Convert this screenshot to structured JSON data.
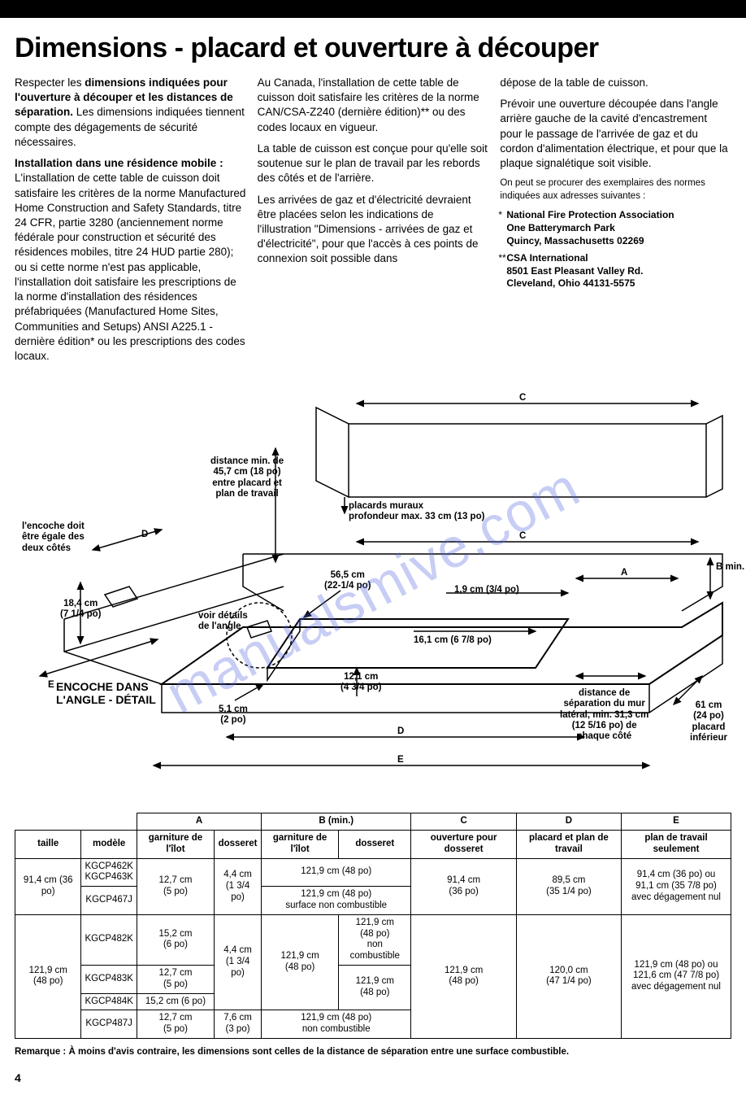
{
  "title": "Dimensions - placard et ouverture à découper",
  "watermark": "manualsmive.com",
  "col1": {
    "p1a": "Respecter les ",
    "p1b": "dimensions indiquées pour l'ouverture à découper et les distances de séparation.",
    "p1c": " Les dimensions indiquées tiennent compte des dégagements de sécurité nécessaires.",
    "p2a": "Installation dans une résidence mobile :",
    "p2b": " L'installation de cette table de cuisson doit satisfaire les critères de la norme Manufactured Home Construction and Safety Standards, titre 24 CFR, partie 3280 (anciennement norme fédérale pour construction et sécurité des résidences mobiles, titre 24 HUD partie 280); ou si cette norme n'est pas applicable, l'installation doit satisfaire les prescriptions de la norme d'installation des résidences préfabriquées (Manufactured Home Sites, Communities and Setups) ANSI A225.1 - dernière édition* ou les prescriptions des codes locaux."
  },
  "col2": {
    "p1": "Au Canada, l'installation de cette table de cuisson doit satisfaire les critères de la norme CAN/CSA-Z240 (dernière édition)** ou des codes locaux en vigueur.",
    "p2": "La table de cuisson est conçue pour qu'elle soit soutenue sur le plan de travail par les rebords des côtés et de l'arrière.",
    "p3": "Les arrivées de gaz et d'électricité devraient être placées selon les indications de l'illustration \"Dimensions - arrivées de gaz et d'électricité\", pour que l'accès à ces points de connexion soit possible dans"
  },
  "col3": {
    "p1": "dépose de la table de cuisson.",
    "p2": "Prévoir une ouverture découpée dans l'angle arrière gauche de la cavité d'encastrement pour le passage de l'arrivée de gaz et du cordon d'alimentation électrique, et pour que la plaque signalétique soit visible.",
    "note": "On peut se procurer des exemplaires des normes indiquées aux adresses suivantes :",
    "addr1": [
      "* ",
      "National Fire Protection Association",
      "One Batterymarch Park",
      "Quincy, Massachusetts 02269"
    ],
    "addr2": [
      "** ",
      "CSA International",
      "8501 East Pleasant Valley Rd.",
      "Cleveland, Ohio 44131-5575"
    ]
  },
  "diagram": {
    "encoche_label": "l'encoche doit\nêtre égale des\ndeux côtés",
    "dist_min": "distance min. de\n45,7 cm (18 po)\nentre placard et\nplan de travail",
    "placards": "placards muraux\nprofondeur max. 33 cm (13 po)",
    "h184": "18,4 cm\n(7 1/4 po)",
    "voir_details": "voir détails\nde l'angle",
    "encoche_detail": "ENCOCHE DANS\nL'ANGLE - DÉTAIL",
    "d565": "56,5 cm\n(22-1/4 po)",
    "d19": "1,9 cm (3/4 po)",
    "d161": "16,1 cm (6 7/8 po)",
    "d121": "12,1 cm\n(4 3/4 po)",
    "d51": "5,1 cm\n(2 po)",
    "dist_sep": "distance de\nséparation du mur\nlatéral, min. 31,3 cm\n(12 5/16 po) de\nchaque côté",
    "d61": "61 cm\n(24 po)\nplacard\ninférieur",
    "A": "A",
    "B": "B min.",
    "C": "C",
    "D": "D",
    "E": "E"
  },
  "table": {
    "header_row1": [
      "",
      "",
      "A",
      "B (min.)",
      "C",
      "D",
      "E"
    ],
    "header_row2": [
      "taille",
      "modèle",
      "garniture de l'îlot",
      "dosseret",
      "garniture de l'îlot",
      "dosseret",
      "ouverture pour dosseret",
      "placard et plan de travail",
      "plan de travail seulement"
    ],
    "rows": [
      {
        "taille": "91,4 cm (36 po)",
        "modele": "KGCP462K\nKGCP463K",
        "A_ilot": "12,7 cm\n(5 po)",
        "A_doss": "4,4 cm\n(1 3/4 po)",
        "B_span": "121,9 cm (48 po)",
        "C": "91,4 cm\n(36 po)",
        "D": "89,5 cm\n(35 1/4 po)",
        "E": "91,4 cm (36 po) ou\n91,1 cm (35 7/8 po)\navec dégagement nul"
      },
      {
        "modele": "KGCP467J",
        "B_span": "121,9 cm (48 po)\nsurface non combustible"
      },
      {
        "taille": "121,9 cm\n(48 po)",
        "modele": "KGCP482K",
        "A_ilot": "15,2 cm\n(6 po)",
        "A_doss": "4,4 cm\n(1 3/4 po)",
        "B_ilot": "121,9 cm\n(48 po)",
        "B_doss": "121,9 cm\n(48 po)\nnon combustible",
        "C": "121,9 cm\n(48 po)",
        "D": "120,0 cm\n(47 1/4 po)",
        "E": "121,9 cm (48 po) ou\n121,6 cm (47 7/8 po)\navec dégagement nul"
      },
      {
        "modele": "KGCP483K",
        "A_ilot": "12,7 cm\n(5 po)",
        "B_doss": "121,9 cm\n(48 po)"
      },
      {
        "modele": "KGCP484K",
        "A_ilot": "15,2 cm (6 po)"
      },
      {
        "modele": "KGCP487J",
        "A_ilot": "12,7 cm\n(5 po)",
        "A_doss": "7,6 cm\n(3 po)",
        "B_span": "121,9 cm (48 po)\nnon combustible"
      }
    ]
  },
  "remark_label": "Remarque : ",
  "remark_text": "À moins d'avis contraire, les dimensions sont celles de la distance de séparation entre une surface combustible.",
  "page_number": "4"
}
